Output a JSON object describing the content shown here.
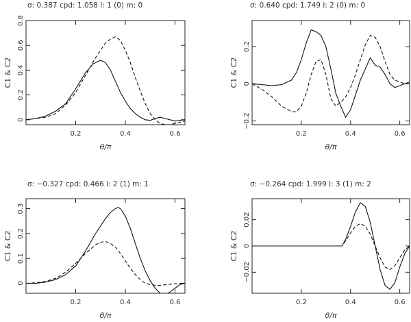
{
  "chart_data": [
    {
      "type": "line",
      "header": {
        "sigma_label": "σ:",
        "sigma": "0.387",
        "cpd_label": "cpd:",
        "cpd": "1.058",
        "l_label": "l:",
        "l": "1 (0)",
        "m_label": "m:",
        "m": "0"
      },
      "xlabel": "θ/π",
      "ylabel": "C1 & C2",
      "xlim": [
        0,
        0.64
      ],
      "ylim": [
        -0.04,
        0.8
      ],
      "xticks": [
        0.2,
        0.4,
        0.6
      ],
      "yticks": [
        0,
        0.2,
        0.4,
        0.6,
        0.8
      ],
      "ytick_labels": [
        "0",
        "0.2",
        "0.4",
        "0.6",
        "0.8"
      ],
      "series": [
        {
          "name": "C1",
          "style": "solid",
          "x": [
            0,
            0.04,
            0.08,
            0.12,
            0.16,
            0.2,
            0.24,
            0.27,
            0.3,
            0.32,
            0.34,
            0.36,
            0.38,
            0.4,
            0.42,
            0.44,
            0.46,
            0.48,
            0.5,
            0.52,
            0.54,
            0.56,
            0.58,
            0.6,
            0.62,
            0.64
          ],
          "y": [
            0.0,
            0.01,
            0.03,
            0.07,
            0.13,
            0.25,
            0.38,
            0.45,
            0.48,
            0.46,
            0.4,
            0.31,
            0.22,
            0.15,
            0.09,
            0.05,
            0.02,
            0.0,
            -0.005,
            0.01,
            0.02,
            0.01,
            0.0,
            -0.01,
            -0.005,
            0.0
          ]
        },
        {
          "name": "C2",
          "style": "dashed",
          "x": [
            0,
            0.04,
            0.08,
            0.12,
            0.16,
            0.2,
            0.24,
            0.28,
            0.3,
            0.32,
            0.34,
            0.36,
            0.38,
            0.4,
            0.42,
            0.44,
            0.46,
            0.48,
            0.5,
            0.52,
            0.54,
            0.56,
            0.58,
            0.6,
            0.62,
            0.64
          ],
          "y": [
            0.0,
            0.01,
            0.02,
            0.05,
            0.12,
            0.22,
            0.36,
            0.5,
            0.56,
            0.62,
            0.65,
            0.67,
            0.64,
            0.56,
            0.46,
            0.34,
            0.23,
            0.13,
            0.05,
            0.0,
            -0.03,
            -0.04,
            -0.04,
            -0.03,
            -0.02,
            -0.01
          ]
        }
      ]
    },
    {
      "type": "line",
      "header": {
        "sigma_label": "σ:",
        "sigma": "0.640",
        "cpd_label": "cpd:",
        "cpd": "1.749",
        "l_label": "l:",
        "l": "2 (0)",
        "m_label": "m:",
        "m": "0"
      },
      "xlabel": "θ/π",
      "ylabel": "C1 & C2",
      "xlim": [
        0,
        0.64
      ],
      "ylim": [
        -0.22,
        0.34
      ],
      "xticks": [
        0.2,
        0.4,
        0.6
      ],
      "yticks": [
        -0.2,
        0,
        0.2
      ],
      "ytick_labels": [
        "−0.2",
        "0",
        "0.2"
      ],
      "series": [
        {
          "name": "C1",
          "style": "solid",
          "x": [
            0,
            0.04,
            0.08,
            0.12,
            0.16,
            0.18,
            0.2,
            0.22,
            0.24,
            0.26,
            0.28,
            0.3,
            0.32,
            0.34,
            0.36,
            0.38,
            0.4,
            0.42,
            0.44,
            0.46,
            0.48,
            0.5,
            0.52,
            0.54,
            0.56,
            0.58,
            0.6,
            0.62,
            0.64
          ],
          "y": [
            0.0,
            -0.005,
            -0.01,
            -0.005,
            0.02,
            0.06,
            0.13,
            0.22,
            0.29,
            0.28,
            0.26,
            0.2,
            0.08,
            -0.05,
            -0.12,
            -0.18,
            -0.14,
            -0.06,
            0.02,
            0.08,
            0.14,
            0.1,
            0.09,
            0.05,
            0.0,
            -0.02,
            -0.01,
            0.0,
            0.01
          ]
        },
        {
          "name": "C2",
          "style": "dashed",
          "x": [
            0,
            0.04,
            0.08,
            0.12,
            0.16,
            0.18,
            0.2,
            0.22,
            0.24,
            0.26,
            0.28,
            0.3,
            0.32,
            0.34,
            0.36,
            0.38,
            0.4,
            0.42,
            0.44,
            0.46,
            0.48,
            0.5,
            0.52,
            0.54,
            0.56,
            0.58,
            0.6,
            0.62,
            0.64
          ],
          "y": [
            0.0,
            -0.03,
            -0.07,
            -0.12,
            -0.15,
            -0.15,
            -0.12,
            -0.05,
            0.05,
            0.12,
            0.13,
            0.05,
            -0.08,
            -0.12,
            -0.1,
            -0.07,
            -0.02,
            0.05,
            0.13,
            0.21,
            0.26,
            0.25,
            0.2,
            0.12,
            0.05,
            0.02,
            0.01,
            0.0,
            0.0
          ]
        }
      ]
    },
    {
      "type": "line",
      "header": {
        "sigma_label": "σ:",
        "sigma": "−0.327",
        "cpd_label": "cpd:",
        "cpd": "0.466",
        "l_label": "l:",
        "l": "2 (1)",
        "m_label": "m:",
        "m": "1"
      },
      "xlabel": "θ/π",
      "ylabel": "C1 & C2",
      "xlim": [
        0,
        0.64
      ],
      "ylim": [
        -0.04,
        0.34
      ],
      "xticks": [
        0.2,
        0.4,
        0.6
      ],
      "yticks": [
        0,
        0.1,
        0.2,
        0.3
      ],
      "ytick_labels": [
        "0",
        "0.1",
        "0.2",
        "0.3"
      ],
      "series": [
        {
          "name": "C1",
          "style": "solid",
          "x": [
            0,
            0.04,
            0.08,
            0.12,
            0.16,
            0.2,
            0.24,
            0.28,
            0.3,
            0.32,
            0.34,
            0.36,
            0.37,
            0.38,
            0.4,
            0.42,
            0.44,
            0.46,
            0.48,
            0.5,
            0.52,
            0.54,
            0.56,
            0.58,
            0.6,
            0.62,
            0.64
          ],
          "y": [
            0.0,
            0.0,
            0.005,
            0.015,
            0.035,
            0.07,
            0.13,
            0.2,
            0.23,
            0.26,
            0.285,
            0.3,
            0.305,
            0.3,
            0.27,
            0.22,
            0.16,
            0.1,
            0.05,
            0.01,
            -0.02,
            -0.04,
            -0.045,
            -0.035,
            -0.02,
            -0.005,
            0.0
          ]
        },
        {
          "name": "C2",
          "style": "dashed",
          "x": [
            0,
            0.04,
            0.08,
            0.12,
            0.16,
            0.2,
            0.24,
            0.28,
            0.3,
            0.32,
            0.34,
            0.36,
            0.38,
            0.4,
            0.42,
            0.44,
            0.46,
            0.48,
            0.5,
            0.52,
            0.54,
            0.56,
            0.58,
            0.6,
            0.62,
            0.64
          ],
          "y": [
            0.0,
            0.002,
            0.008,
            0.02,
            0.045,
            0.08,
            0.12,
            0.155,
            0.165,
            0.168,
            0.16,
            0.145,
            0.12,
            0.09,
            0.06,
            0.035,
            0.015,
            0.0,
            -0.005,
            -0.008,
            -0.008,
            -0.006,
            -0.004,
            -0.002,
            0.0,
            0.0
          ]
        }
      ]
    },
    {
      "type": "line",
      "header": {
        "sigma_label": "σ:",
        "sigma": "−0.264",
        "cpd_label": "cpd:",
        "cpd": "1.999",
        "l_label": "l:",
        "l": "3 (1)",
        "m_label": "m:",
        "m": "2"
      },
      "xlabel": "θ/π",
      "ylabel": "C1 & C2",
      "xlim": [
        0,
        0.64
      ],
      "ylim": [
        -0.036,
        0.036
      ],
      "xticks": [
        0.2,
        0.4,
        0.6
      ],
      "yticks": [
        -0.02,
        0,
        0.02
      ],
      "ytick_labels": [
        "−0.02",
        "0",
        "0.02"
      ],
      "series": [
        {
          "name": "C1",
          "style": "solid",
          "x": [
            0,
            0.1,
            0.2,
            0.3,
            0.365,
            0.38,
            0.4,
            0.42,
            0.44,
            0.46,
            0.48,
            0.5,
            0.52,
            0.54,
            0.56,
            0.58,
            0.6,
            0.62,
            0.64
          ],
          "y": [
            0.0,
            0.0,
            0.0,
            0.0,
            0.0,
            0.005,
            0.015,
            0.026,
            0.033,
            0.03,
            0.018,
            0.0,
            -0.018,
            -0.03,
            -0.033,
            -0.028,
            -0.016,
            -0.006,
            0.0
          ]
        },
        {
          "name": "C2",
          "style": "dashed",
          "x": [
            0,
            0.1,
            0.2,
            0.3,
            0.365,
            0.38,
            0.4,
            0.42,
            0.44,
            0.46,
            0.48,
            0.5,
            0.52,
            0.54,
            0.56,
            0.58,
            0.6,
            0.62,
            0.64
          ],
          "y": [
            0.0,
            0.0,
            0.0,
            0.0,
            0.0,
            0.004,
            0.01,
            0.015,
            0.017,
            0.015,
            0.009,
            0.0,
            -0.009,
            -0.016,
            -0.018,
            -0.015,
            -0.009,
            -0.003,
            0.0
          ]
        }
      ]
    }
  ]
}
